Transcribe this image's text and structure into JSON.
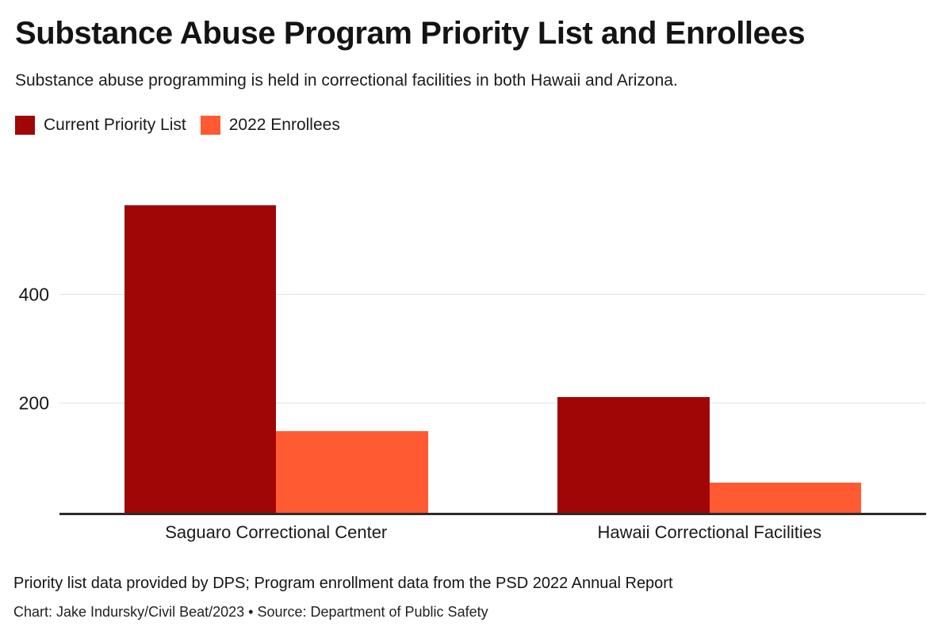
{
  "header": {
    "title": "Substance Abuse Program Priority List and Enrollees",
    "subtitle": "Substance abuse programming is held in correctional facilities in both Hawaii and Arizona."
  },
  "legend": {
    "items": [
      {
        "label": "Current Priority List",
        "color": "#A00606"
      },
      {
        "label": "2022 Enrollees",
        "color": "#FF5A32"
      }
    ]
  },
  "chart_data": {
    "type": "bar",
    "categories": [
      "Saguaro Correctional Center",
      "Hawaii Correctional Facilities"
    ],
    "series": [
      {
        "name": "Current Priority List",
        "color": "#A00606",
        "values": [
          563,
          212
        ]
      },
      {
        "name": "2022 Enrollees",
        "color": "#FF5A32",
        "values": [
          150,
          55
        ]
      }
    ],
    "title": "Substance Abuse Program Priority List and Enrollees",
    "xlabel": "",
    "ylabel": "",
    "ylim": [
      0,
      600
    ],
    "yticks": [
      200,
      400
    ],
    "grid": "horizontal",
    "legend_position": "top-left",
    "axis_color": "#2b2b2b",
    "gridline_color": "#e3e3e3"
  },
  "footer": {
    "note": "Priority list data provided by DPS; Program enrollment data from the PSD 2022 Annual Report",
    "credit": "Chart: Jake Indursky/Civil Beat/2023 • Source: Department of Public Safety"
  }
}
